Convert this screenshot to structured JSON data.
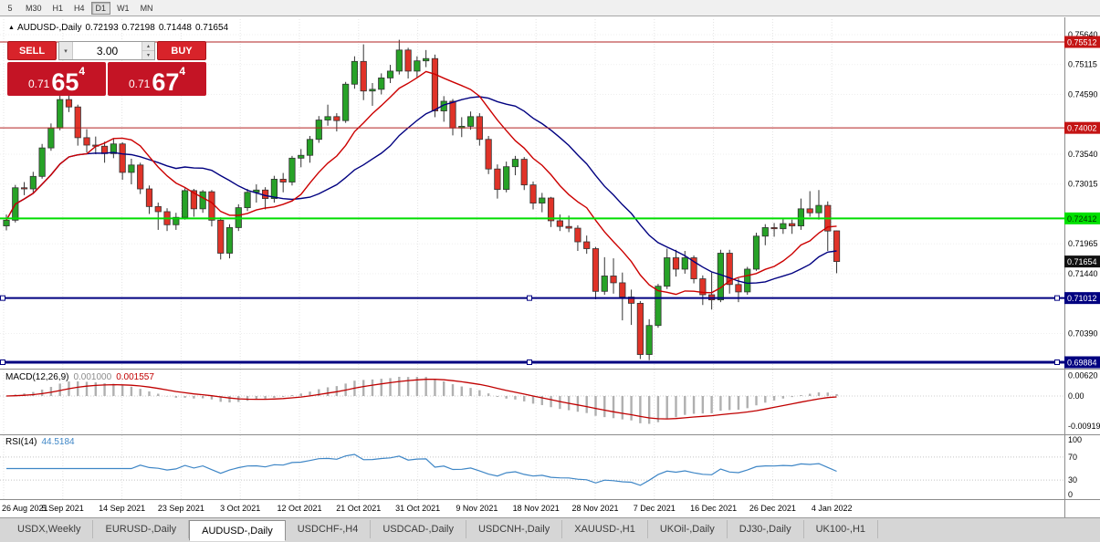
{
  "toolbar": {
    "timeframes": [
      {
        "label": "5",
        "active": false
      },
      {
        "label": "M30",
        "active": false
      },
      {
        "label": "H1",
        "active": false
      },
      {
        "label": "H4",
        "active": false
      },
      {
        "label": "D1",
        "active": true
      },
      {
        "label": "W1",
        "active": false
      },
      {
        "label": "MN",
        "active": false
      }
    ]
  },
  "chart_header": {
    "marker": "▲",
    "symbol": "AUDUSD-,Daily",
    "open": "0.72193",
    "high": "0.72198",
    "low": "0.71448",
    "close": "0.71654"
  },
  "trade_panel": {
    "sell_label": "SELL",
    "buy_label": "BUY",
    "volume": "3.00",
    "dropdown_icon": "▾",
    "spin_up_icon": "▴",
    "spin_down_icon": "▾",
    "sell_price": {
      "big": "0.71",
      "pips": "65",
      "pipette": "4"
    },
    "buy_price": {
      "big": "0.71",
      "pips": "67",
      "pipette": "4"
    }
  },
  "indicators": {
    "macd": {
      "label": "MACD(12,26,9)",
      "value_main": "0.001000",
      "value_signal": "0.001557",
      "fast": 12,
      "slow": 26,
      "signal": 9,
      "scale": [
        {
          "text": "0.00620",
          "value": 0.0062
        },
        {
          "text": "0.00",
          "value": 0
        },
        {
          "text": "-0.00919",
          "value": -0.00919
        }
      ],
      "histogram_color": "#b0b0b0",
      "signal_color": "#c00000"
    },
    "rsi": {
      "label": "RSI(14)",
      "value": "44.5184",
      "period": 14,
      "line_color": "#3e86c6",
      "levels": [
        {
          "text": "100",
          "value": 100,
          "dotted": false
        },
        {
          "text": "70",
          "value": 70,
          "dotted": true
        },
        {
          "text": "30",
          "value": 30,
          "dotted": true
        },
        {
          "text": "0",
          "value": 0,
          "dotted": false
        }
      ]
    }
  },
  "price_axis": {
    "labels": [
      "0.75640",
      "0.75115",
      "0.74590",
      "0.73540",
      "0.73015",
      "0.71965",
      "0.71440",
      "0.70390"
    ],
    "tags": [
      {
        "text": "0.75512",
        "value": 0.75512,
        "bg": "#c41414",
        "fg": "#ffffff"
      },
      {
        "text": "0.74002",
        "value": 0.74002,
        "bg": "#c41414",
        "fg": "#ffffff"
      },
      {
        "text": "0.72412",
        "value": 0.72412,
        "bg": "#00e000",
        "fg": "#003300"
      },
      {
        "text": "0.71654",
        "value": 0.71654,
        "bg": "#111111",
        "fg": "#ffffff"
      },
      {
        "text": "0.71012",
        "value": 0.71012,
        "bg": "#000080",
        "fg": "#ffffff"
      },
      {
        "text": "0.69884",
        "value": 0.69884,
        "bg": "#000080",
        "fg": "#ffffff"
      }
    ]
  },
  "hlines": [
    {
      "value": 0.75512,
      "color": "#b22020",
      "w": 1,
      "handles": false
    },
    {
      "value": 0.74002,
      "color": "#b22020",
      "w": 1,
      "handles": false
    },
    {
      "value": 0.72412,
      "color": "#00dd00",
      "w": 2,
      "handles": false
    },
    {
      "value": 0.71012,
      "color": "#000080",
      "w": 2,
      "handles": true
    },
    {
      "value": 0.69884,
      "color": "#000080",
      "w": 3,
      "handles": true
    }
  ],
  "chart_data": {
    "type": "candlestick",
    "symbol": "AUDUSD",
    "timeframe": "Daily",
    "y_range": [
      0.6977,
      0.7594
    ],
    "up_color": "#27a227",
    "down_color": "#e03328",
    "outline_color": "#333333",
    "ma": [
      {
        "period": 10,
        "color": "#cc0000"
      },
      {
        "period": 20,
        "color": "#000080"
      }
    ],
    "x_labels": [
      "26 Aug 2021",
      "5 Sep 2021",
      "14 Sep 2021",
      "23 Sep 2021",
      "3 Oct 2021",
      "12 Oct 2021",
      "21 Oct 2021",
      "31 Oct 2021",
      "9 Nov 2021",
      "18 Nov 2021",
      "28 Nov 2021",
      "7 Dec 2021",
      "16 Dec 2021",
      "26 Dec 2021",
      "4 Jan 2022"
    ],
    "candles": [
      [
        0.7228,
        0.7248,
        0.722,
        0.7238
      ],
      [
        0.7238,
        0.73,
        0.7234,
        0.7295
      ],
      [
        0.7295,
        0.7305,
        0.7282,
        0.7293
      ],
      [
        0.7293,
        0.7323,
        0.7287,
        0.7315
      ],
      [
        0.7315,
        0.7372,
        0.7311,
        0.7365
      ],
      [
        0.7365,
        0.7408,
        0.736,
        0.74
      ],
      [
        0.74,
        0.7468,
        0.7396,
        0.745
      ],
      [
        0.745,
        0.747,
        0.7428,
        0.7437
      ],
      [
        0.7437,
        0.7441,
        0.7369,
        0.7383
      ],
      [
        0.7383,
        0.7398,
        0.7357,
        0.737
      ],
      [
        0.737,
        0.7385,
        0.7354,
        0.7368
      ],
      [
        0.7368,
        0.7376,
        0.7339,
        0.7355
      ],
      [
        0.7355,
        0.7381,
        0.7347,
        0.7372
      ],
      [
        0.7372,
        0.7375,
        0.7309,
        0.7322
      ],
      [
        0.7322,
        0.7346,
        0.7301,
        0.7335
      ],
      [
        0.7335,
        0.7339,
        0.7284,
        0.7293
      ],
      [
        0.7293,
        0.7299,
        0.7249,
        0.7262
      ],
      [
        0.7262,
        0.7269,
        0.7221,
        0.7253
      ],
      [
        0.7253,
        0.7259,
        0.7219,
        0.723
      ],
      [
        0.723,
        0.7251,
        0.7221,
        0.7243
      ],
      [
        0.7243,
        0.7294,
        0.7239,
        0.729
      ],
      [
        0.729,
        0.7293,
        0.7244,
        0.7258
      ],
      [
        0.7258,
        0.7291,
        0.7251,
        0.7288
      ],
      [
        0.7288,
        0.7291,
        0.7227,
        0.7238
      ],
      [
        0.7238,
        0.7243,
        0.7169,
        0.718
      ],
      [
        0.718,
        0.7231,
        0.7171,
        0.7225
      ],
      [
        0.7225,
        0.7266,
        0.7219,
        0.726
      ],
      [
        0.726,
        0.7293,
        0.7254,
        0.7287
      ],
      [
        0.7287,
        0.7301,
        0.7269,
        0.7291
      ],
      [
        0.7291,
        0.7296,
        0.7257,
        0.7276
      ],
      [
        0.7276,
        0.7316,
        0.7269,
        0.731
      ],
      [
        0.731,
        0.7321,
        0.7287,
        0.7305
      ],
      [
        0.7305,
        0.7351,
        0.7299,
        0.7347
      ],
      [
        0.7347,
        0.7363,
        0.7331,
        0.7352
      ],
      [
        0.7352,
        0.7386,
        0.7339,
        0.738
      ],
      [
        0.738,
        0.7421,
        0.7374,
        0.7414
      ],
      [
        0.7414,
        0.7441,
        0.7404,
        0.742
      ],
      [
        0.742,
        0.7426,
        0.7394,
        0.7413
      ],
      [
        0.7413,
        0.7481,
        0.7409,
        0.7477
      ],
      [
        0.7477,
        0.7526,
        0.7469,
        0.7517
      ],
      [
        0.7517,
        0.7547,
        0.7449,
        0.7465
      ],
      [
        0.7465,
        0.7479,
        0.7439,
        0.7468
      ],
      [
        0.7468,
        0.7496,
        0.7459,
        0.7488
      ],
      [
        0.7488,
        0.7511,
        0.7479,
        0.75
      ],
      [
        0.75,
        0.7555,
        0.7494,
        0.7537
      ],
      [
        0.7537,
        0.7541,
        0.7487,
        0.75
      ],
      [
        0.75,
        0.7526,
        0.7489,
        0.7518
      ],
      [
        0.7518,
        0.7537,
        0.7507,
        0.7522
      ],
      [
        0.7522,
        0.7529,
        0.7419,
        0.743
      ],
      [
        0.743,
        0.7456,
        0.7411,
        0.7447
      ],
      [
        0.7447,
        0.7451,
        0.7387,
        0.74
      ],
      [
        0.74,
        0.7419,
        0.7384,
        0.7403
      ],
      [
        0.7403,
        0.7429,
        0.7397,
        0.742
      ],
      [
        0.742,
        0.7426,
        0.7369,
        0.738
      ],
      [
        0.738,
        0.7386,
        0.7319,
        0.7328
      ],
      [
        0.7328,
        0.7336,
        0.7276,
        0.7292
      ],
      [
        0.7292,
        0.7341,
        0.7287,
        0.7332
      ],
      [
        0.7332,
        0.7351,
        0.7317,
        0.7345
      ],
      [
        0.7345,
        0.7349,
        0.7291,
        0.73
      ],
      [
        0.73,
        0.7306,
        0.7257,
        0.7268
      ],
      [
        0.7268,
        0.7286,
        0.7252,
        0.7277
      ],
      [
        0.7277,
        0.7279,
        0.7226,
        0.7237
      ],
      [
        0.7237,
        0.7248,
        0.7219,
        0.7227
      ],
      [
        0.7227,
        0.7246,
        0.7217,
        0.7224
      ],
      [
        0.7224,
        0.7229,
        0.7184,
        0.72
      ],
      [
        0.72,
        0.7211,
        0.7179,
        0.7188
      ],
      [
        0.7188,
        0.7191,
        0.7099,
        0.7113
      ],
      [
        0.7113,
        0.7173,
        0.7107,
        0.714
      ],
      [
        0.714,
        0.7171,
        0.7109,
        0.7128
      ],
      [
        0.7128,
        0.7146,
        0.7062,
        0.7103
      ],
      [
        0.7103,
        0.7116,
        0.7054,
        0.7092
      ],
      [
        0.7092,
        0.7096,
        0.6994,
        0.7002
      ],
      [
        0.7002,
        0.7064,
        0.6992,
        0.7053
      ],
      [
        0.7053,
        0.7126,
        0.7049,
        0.7122
      ],
      [
        0.7122,
        0.7188,
        0.7117,
        0.7172
      ],
      [
        0.7172,
        0.7186,
        0.7139,
        0.7152
      ],
      [
        0.7152,
        0.7184,
        0.7144,
        0.7172
      ],
      [
        0.7172,
        0.7176,
        0.7127,
        0.7135
      ],
      [
        0.7135,
        0.7141,
        0.7089,
        0.7107
      ],
      [
        0.7107,
        0.7146,
        0.7081,
        0.7098
      ],
      [
        0.7098,
        0.7186,
        0.7094,
        0.718
      ],
      [
        0.718,
        0.7186,
        0.7109,
        0.7125
      ],
      [
        0.7125,
        0.7136,
        0.7094,
        0.7112
      ],
      [
        0.7112,
        0.7156,
        0.7107,
        0.7152
      ],
      [
        0.7152,
        0.7216,
        0.7149,
        0.721
      ],
      [
        0.721,
        0.7231,
        0.7194,
        0.7225
      ],
      [
        0.7225,
        0.7233,
        0.7209,
        0.7223
      ],
      [
        0.7223,
        0.7241,
        0.7214,
        0.7232
      ],
      [
        0.7232,
        0.7239,
        0.7214,
        0.7228
      ],
      [
        0.7228,
        0.7276,
        0.7221,
        0.7258
      ],
      [
        0.7258,
        0.7289,
        0.7244,
        0.7251
      ],
      [
        0.7251,
        0.7291,
        0.7239,
        0.7264
      ],
      [
        0.7264,
        0.7271,
        0.7184,
        0.7219
      ],
      [
        0.72193,
        0.72198,
        0.71448,
        0.71654
      ]
    ]
  },
  "tabs": {
    "active_index": 2,
    "items": [
      {
        "label": "USDX,Weekly"
      },
      {
        "label": "EURUSD-,Daily"
      },
      {
        "label": "AUDUSD-,Daily"
      },
      {
        "label": "USDCHF-,H4"
      },
      {
        "label": "USDCAD-,Daily"
      },
      {
        "label": "USDCNH-,Daily"
      },
      {
        "label": "XAUUSD-,H1"
      },
      {
        "label": "UKOil-,Daily"
      },
      {
        "label": "DJ30-,Daily"
      },
      {
        "label": "UK100-,H1"
      }
    ]
  }
}
